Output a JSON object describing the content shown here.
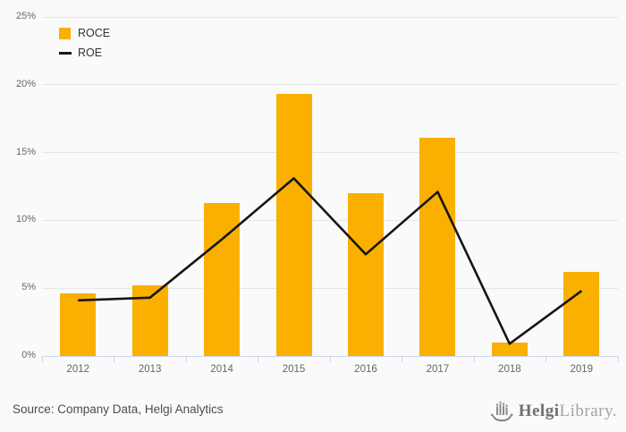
{
  "chart_data": {
    "type": "bar+line",
    "categories": [
      "2012",
      "2013",
      "2014",
      "2015",
      "2016",
      "2017",
      "2018",
      "2019"
    ],
    "series": [
      {
        "name": "ROCE",
        "type": "bar",
        "color": "#F9B000",
        "values": [
          4.6,
          5.2,
          11.3,
          19.3,
          12.0,
          16.1,
          1.0,
          6.2
        ]
      },
      {
        "name": "ROE",
        "type": "line",
        "color": "#161616",
        "values": [
          4.1,
          4.3,
          8.6,
          13.1,
          7.5,
          12.1,
          0.9,
          4.8
        ]
      }
    ],
    "title": "",
    "xlabel": "",
    "ylabel": "",
    "ylim": [
      0,
      25
    ],
    "yticks": [
      {
        "value": 0,
        "label": "0%"
      },
      {
        "value": 5,
        "label": "5%"
      },
      {
        "value": 10,
        "label": "10%"
      },
      {
        "value": 15,
        "label": "15%"
      },
      {
        "value": 20,
        "label": "20%"
      },
      {
        "value": 25,
        "label": "25%"
      }
    ],
    "grid": true,
    "legend_position": "top-left"
  },
  "colors": {
    "background": "#FAFAFA",
    "gridline": "#E6E6E6",
    "axis_line": "#CCD6EB",
    "tick_label": "#666666",
    "legend_text": "#333333",
    "bar": "#F9B000",
    "line": "#161616"
  },
  "footer": {
    "source": "Source: Company Data, Helgi Analytics",
    "logo": {
      "icon": "viking-ship-icon",
      "brand_bold": "Helgi",
      "brand_light": "Library."
    }
  }
}
